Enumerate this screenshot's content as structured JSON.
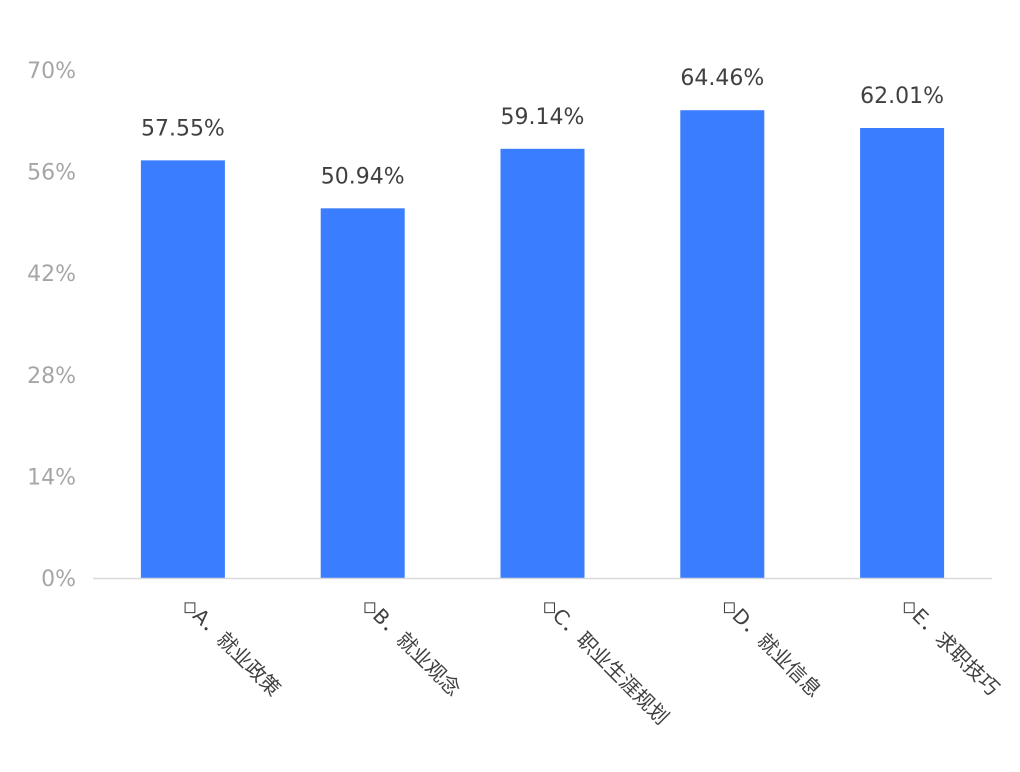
{
  "chart_data": {
    "type": "bar",
    "categories": [
      "◇A．就业政策",
      "◇B．就业观念",
      "◇C．职业生涯规划",
      "◇D．就业信息",
      "◇E．求职技巧"
    ],
    "values": [
      57.55,
      50.94,
      59.14,
      64.46,
      62.01
    ],
    "data_labels": [
      "57.55%",
      "50.94%",
      "59.14%",
      "64.46%",
      "62.01%"
    ],
    "ylim": [
      0,
      70
    ],
    "yticks": [
      0,
      14,
      28,
      42,
      56,
      70
    ],
    "ytick_labels": [
      "0%",
      "14%",
      "28%",
      "42%",
      "56%",
      "70%"
    ],
    "bar_color": "#3a7dff",
    "axis_color": "#d9d9d9",
    "grid": false,
    "legend": "none"
  }
}
